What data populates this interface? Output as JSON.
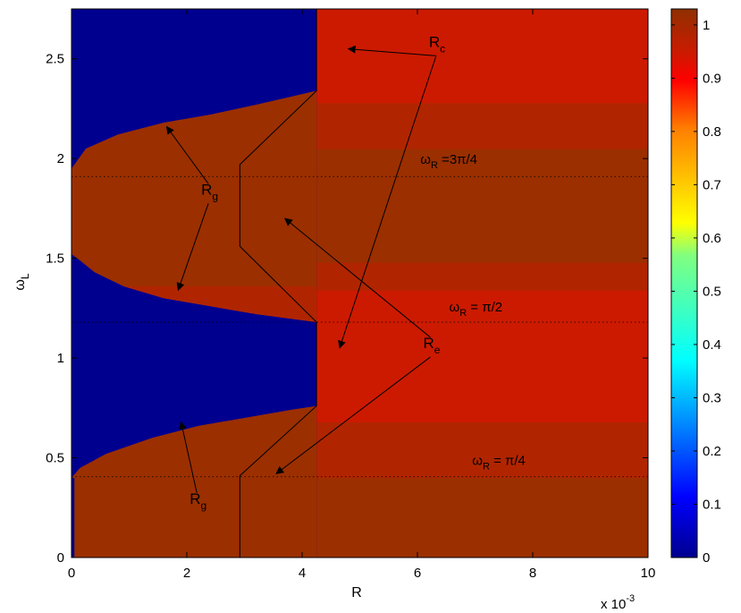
{
  "chart_data": {
    "type": "heatmap",
    "title": "",
    "xlabel": "R",
    "ylabel": "ω_L",
    "x_exponent": {
      "base": "x 10",
      "power": "-3"
    },
    "xlim": [
      0,
      10
    ],
    "ylim": [
      0,
      2.75
    ],
    "x_ticks": [
      "0",
      "2",
      "4",
      "6",
      "8",
      "10"
    ],
    "x_tick_values": [
      0,
      2,
      4,
      6,
      8,
      10
    ],
    "y_ticks": [
      "0",
      "0.5",
      "1",
      "1.5",
      "2",
      "2.5"
    ],
    "y_tick_values": [
      0,
      0.5,
      1,
      1.5,
      2,
      2.5
    ],
    "colorbar": {
      "range": [
        0,
        1.03
      ],
      "colormap": "jet",
      "ticks": [
        "0",
        "0.1",
        "0.2",
        "0.3",
        "0.4",
        "0.5",
        "0.6",
        "0.7",
        "0.8",
        "0.9",
        "1"
      ],
      "tick_values": [
        0,
        0.1,
        0.2,
        0.3,
        0.4,
        0.5,
        0.6,
        0.7,
        0.8,
        0.9,
        1
      ]
    },
    "colors": {
      "blue_region": "#00008F",
      "red_region": "#CC1A00",
      "dark_red_region": "#9B2F00",
      "mid_red": "#B02500"
    },
    "regions": {
      "blue_boundary_R": 4.25,
      "thin_left_strip_R": 0.05,
      "blue_lobes": [
        {
          "omega_range": [
            0.4,
            0.76
          ],
          "edge_R_at": [
            [
              0.4,
              0.0
            ],
            [
              0.45,
              0.15
            ],
            [
              0.52,
              0.6
            ],
            [
              0.6,
              1.4
            ],
            [
              0.66,
              2.2
            ],
            [
              0.7,
              3.0
            ],
            [
              0.74,
              3.8
            ],
            [
              0.76,
              4.25
            ]
          ]
        },
        {
          "omega_range": [
            1.18,
            1.52
          ],
          "edge_R_at": [
            [
              1.18,
              4.25
            ],
            [
              1.22,
              3.2
            ],
            [
              1.26,
              2.4
            ],
            [
              1.3,
              1.6
            ],
            [
              1.36,
              0.9
            ],
            [
              1.43,
              0.4
            ],
            [
              1.5,
              0.1
            ],
            [
              1.52,
              0.0
            ]
          ]
        },
        {
          "omega_range": [
            1.95,
            2.34
          ],
          "edge_R_at": [
            [
              1.95,
              0.0
            ],
            [
              2.05,
              0.25
            ],
            [
              2.12,
              0.8
            ],
            [
              2.18,
              1.6
            ],
            [
              2.22,
              2.4
            ],
            [
              2.27,
              3.2
            ],
            [
              2.31,
              3.8
            ],
            [
              2.34,
              4.25
            ]
          ]
        }
      ]
    },
    "reference_lines": [
      {
        "omega": 0.405,
        "label_main": "ω",
        "label_sub": "R",
        "label_rest": " = π/4"
      },
      {
        "omega": 1.18,
        "label_main": "ω",
        "label_sub": "R",
        "label_rest": " = π/2"
      },
      {
        "omega": 1.91,
        "label_main": "ω",
        "label_sub": "R",
        "label_rest": " =3π/4"
      }
    ],
    "boundary_curve": [
      [
        2.92,
        0
      ],
      [
        2.92,
        0.41
      ],
      [
        4.25,
        0.76
      ],
      [
        4.25,
        1.18
      ],
      [
        2.92,
        1.56
      ],
      [
        2.92,
        1.97
      ],
      [
        4.25,
        2.34
      ],
      [
        4.25,
        2.75
      ]
    ],
    "annotations": [
      {
        "id": "rc",
        "main": "R",
        "sub": "c",
        "text_at": [
          6.2,
          2.56
        ],
        "arrows_to": [
          [
            4.8,
            2.55
          ],
          [
            4.65,
            1.05
          ]
        ]
      },
      {
        "id": "re",
        "main": "R",
        "sub": "e",
        "text_at": [
          6.1,
          1.05
        ],
        "arrows_to": [
          [
            3.7,
            1.7
          ],
          [
            3.55,
            0.42
          ]
        ]
      },
      {
        "id": "rg_upper",
        "main": "R",
        "sub": "g",
        "text_at": [
          2.25,
          1.82
        ],
        "arrows_to": [
          [
            1.65,
            2.16
          ],
          [
            1.85,
            1.34
          ]
        ]
      },
      {
        "id": "rg_lower",
        "main": "R",
        "sub": "g",
        "text_at": [
          2.05,
          0.27
        ],
        "arrows_to": [
          [
            1.9,
            0.68
          ]
        ]
      }
    ]
  }
}
